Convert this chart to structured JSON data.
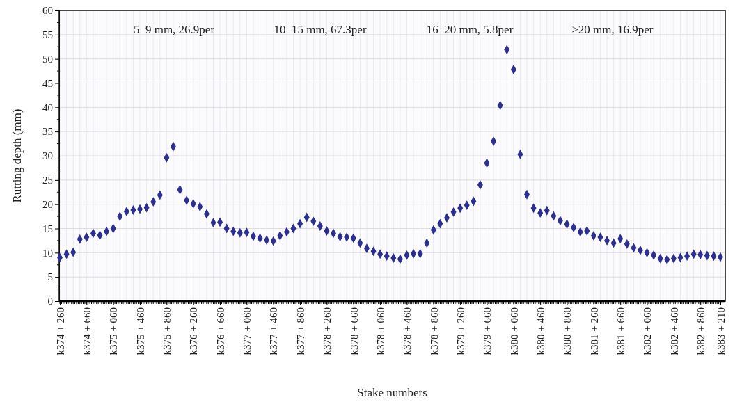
{
  "chart_data": {
    "type": "scatter",
    "xlabel": "Stake numbers",
    "ylabel": "Rutting depth (mm)",
    "categories": [
      "k374 + 260",
      null,
      null,
      null,
      "k374 + 660",
      null,
      null,
      null,
      "k375 + 060",
      null,
      null,
      null,
      "k375 + 460",
      null,
      null,
      null,
      "k375 + 860",
      null,
      null,
      null,
      "k376 + 260",
      null,
      null,
      null,
      "k376 + 660",
      null,
      null,
      null,
      "k377 + 060",
      null,
      null,
      null,
      "k377 + 460",
      null,
      null,
      null,
      "k377 + 860",
      null,
      null,
      null,
      "k378 + 260",
      null,
      null,
      null,
      "k378 + 660",
      null,
      null,
      null,
      "k378 + 060",
      null,
      null,
      null,
      "k378 + 460",
      null,
      null,
      null,
      "k378 + 860",
      null,
      null,
      null,
      "k379 + 260",
      null,
      null,
      null,
      "k379 + 660",
      null,
      null,
      null,
      "k380 + 060",
      null,
      null,
      null,
      "k380 + 460",
      null,
      null,
      null,
      "k380 + 860",
      null,
      null,
      null,
      "k381 + 260",
      null,
      null,
      null,
      "k381 + 660",
      null,
      null,
      null,
      "k382 + 060",
      null,
      null,
      null,
      "k382 + 460",
      null,
      null,
      null,
      "k382 + 860",
      null,
      null,
      "k383 + 210"
    ],
    "series": [
      {
        "color": "#2b2f8f",
        "values": [
          9.0,
          9.7,
          10.1,
          12.8,
          13.2,
          14.0,
          13.6,
          14.4,
          15.0,
          17.5,
          18.5,
          18.8,
          19.0,
          19.3,
          20.5,
          21.9,
          29.6,
          31.9,
          23.0,
          20.8,
          20.1,
          19.5,
          18.0,
          16.2,
          16.3,
          15.0,
          14.4,
          14.1,
          14.2,
          13.4,
          13.0,
          12.6,
          12.4,
          13.5,
          14.3,
          15.0,
          16.0,
          17.3,
          16.5,
          15.5,
          14.5,
          14.0,
          13.3,
          13.2,
          13.0,
          12.0,
          10.9,
          10.3,
          9.7,
          9.3,
          8.9,
          8.7,
          9.5,
          9.8,
          9.8,
          12.0,
          14.7,
          16.0,
          17.2,
          18.4,
          19.2,
          19.8,
          20.6,
          24.0,
          28.5,
          33.0,
          40.4,
          51.9,
          47.8,
          30.3,
          22.0,
          19.2,
          18.2,
          18.7,
          17.6,
          16.6,
          15.9,
          15.2,
          14.3,
          14.5,
          13.5,
          13.2,
          12.5,
          12.0,
          12.9,
          11.8,
          11.0,
          10.5,
          10.0,
          9.5,
          8.8,
          8.6,
          8.8,
          9.0,
          9.3,
          9.7,
          9.6,
          9.4,
          9.3,
          9.1
        ]
      }
    ],
    "ylim": [
      0,
      60
    ],
    "yticks": [
      0,
      5,
      10,
      15,
      20,
      25,
      30,
      35,
      40,
      45,
      50,
      55,
      60
    ],
    "grid": true,
    "marker": "diamond",
    "annotations": [
      "5–9 mm, 26.9per",
      "10–15 mm, 67.3per",
      "16–20 mm, 5.8per",
      "≥20 mm, 16.9per"
    ]
  }
}
